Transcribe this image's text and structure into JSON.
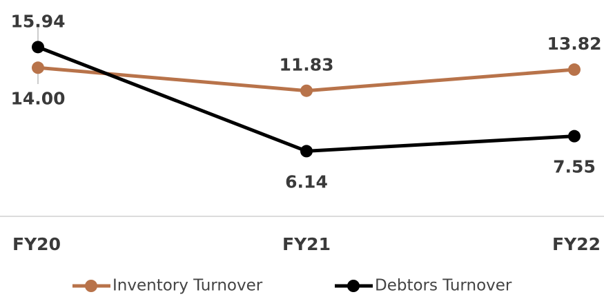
{
  "chart_data": {
    "type": "line",
    "categories": [
      "FY20",
      "FY21",
      "FY22"
    ],
    "series": [
      {
        "name": "Inventory Turnover",
        "color": "#b8734a",
        "values": [
          14.0,
          11.83,
          13.82
        ],
        "value_labels": [
          "14.00",
          "11.83",
          "13.82"
        ]
      },
      {
        "name": "Debtors Turnover",
        "color": "#000000",
        "values": [
          15.94,
          6.14,
          7.55
        ],
        "value_labels": [
          "15.94",
          "6.14",
          "7.55"
        ]
      }
    ]
  }
}
